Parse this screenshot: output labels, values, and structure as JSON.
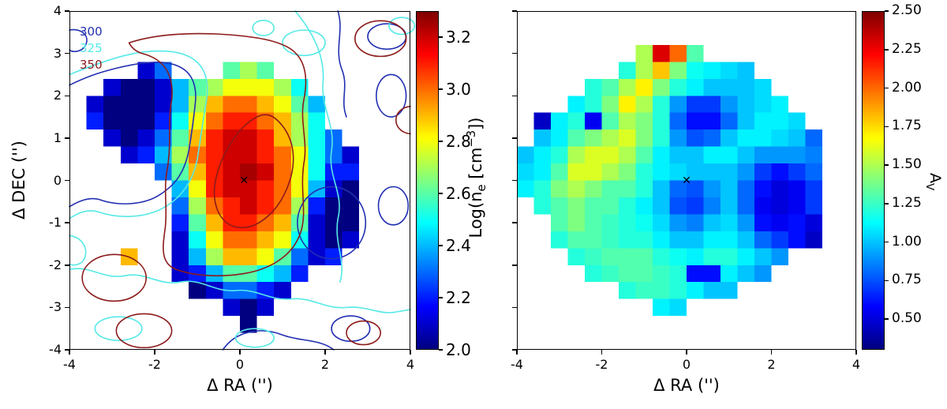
{
  "left_panel": {
    "xlabel": "Δ RA ('')",
    "ylabel": "Δ DEC ('')",
    "x_tick_labels": [
      "-4",
      "-2",
      "0",
      "2",
      "4"
    ],
    "y_tick_labels": [
      "4",
      "3",
      "2",
      "1",
      "0",
      "-1",
      "-2",
      "-3",
      "-4"
    ],
    "legend": [
      {
        "label": "300",
        "color": "#2230b2"
      },
      {
        "label": "325",
        "color": "#55e9e7"
      },
      {
        "label": "350",
        "color": "#8c1a1a"
      }
    ],
    "marker_symbol": "✕",
    "colorbar": {
      "label_prefix": "Log(n",
      "label_sub": "e",
      "label_mid": " [cm",
      "label_sup": "−3",
      "label_suffix": "])",
      "tick_labels": [
        "3.2",
        "3.0",
        "2.8",
        "2.6",
        "2.4",
        "2.2",
        "2.0"
      ]
    }
  },
  "right_panel": {
    "xlabel": "Δ RA ('')",
    "x_tick_labels": [
      "-4",
      "-2",
      "0",
      "2",
      "4"
    ],
    "marker_symbol": "✕",
    "colorbar": {
      "label_text": "A",
      "label_sub": "V",
      "tick_labels": [
        "2.50",
        "2.25",
        "2.00",
        "1.75",
        "1.50",
        "1.25",
        "1.00",
        "0.75",
        "0.50"
      ]
    }
  },
  "chart_data": [
    {
      "type": "heatmap",
      "xlabel": "Δ RA ('')",
      "ylabel": "Δ DEC ('')",
      "x_range": [
        -4,
        4
      ],
      "y_range": [
        -4,
        4
      ],
      "x_ticks": [
        -4,
        -2,
        0,
        2,
        4
      ],
      "y_ticks": [
        4,
        3,
        2,
        1,
        0,
        -1,
        -2,
        -3,
        -4
      ],
      "colormap": "jet",
      "vmin": 2.0,
      "vmax": 3.3,
      "colorbar_label": "Log(ne [cm−3])",
      "colorbar_ticks": [
        2.0,
        2.2,
        2.4,
        2.6,
        2.8,
        3.0,
        3.2
      ],
      "contour_levels": [
        "300",
        "325",
        "350"
      ],
      "marker_xy": [
        0.1,
        0
      ],
      "cell_size_arcsec": 0.4,
      "grid_rows": "top DEC=+4 to bottom DEC=-4, columns RA=-4 to +4",
      "grid": [
        [
          null,
          null,
          null,
          null,
          null,
          null,
          null,
          null,
          null,
          null,
          null,
          null,
          null,
          null,
          null,
          null,
          null,
          null,
          null,
          null
        ],
        [
          null,
          null,
          null,
          null,
          null,
          null,
          null,
          null,
          null,
          null,
          null,
          null,
          null,
          null,
          null,
          null,
          null,
          null,
          null,
          null
        ],
        [
          null,
          null,
          null,
          null,
          null,
          null,
          null,
          null,
          null,
          null,
          null,
          null,
          null,
          null,
          null,
          null,
          null,
          null,
          null,
          null
        ],
        [
          null,
          null,
          null,
          null,
          2.1,
          2.3,
          null,
          null,
          null,
          2.6,
          2.7,
          2.6,
          null,
          null,
          null,
          null,
          null,
          null,
          null,
          null
        ],
        [
          null,
          null,
          2.1,
          2.0,
          2.0,
          2.1,
          2.4,
          2.6,
          2.7,
          2.8,
          2.8,
          2.8,
          2.7,
          2.5,
          null,
          null,
          null,
          null,
          null,
          null
        ],
        [
          null,
          2.1,
          2.0,
          2.0,
          2.0,
          2.1,
          2.4,
          2.7,
          2.9,
          3.0,
          3.0,
          2.9,
          2.8,
          2.6,
          2.4,
          null,
          null,
          null,
          null,
          null
        ],
        [
          null,
          2.2,
          2.0,
          2.0,
          2.0,
          2.2,
          2.5,
          2.8,
          3.0,
          3.1,
          3.1,
          3.0,
          2.9,
          2.7,
          2.5,
          null,
          null,
          null,
          null,
          null
        ],
        [
          null,
          null,
          2.1,
          2.0,
          2.1,
          2.3,
          2.6,
          2.9,
          3.1,
          3.2,
          3.2,
          3.1,
          2.9,
          2.7,
          2.5,
          2.3,
          null,
          null,
          null,
          null
        ],
        [
          null,
          null,
          null,
          2.1,
          2.2,
          2.4,
          2.7,
          3.0,
          3.1,
          3.2,
          3.2,
          3.1,
          3.0,
          2.8,
          2.5,
          2.3,
          2.1,
          null,
          null,
          null
        ],
        [
          null,
          null,
          null,
          null,
          null,
          2.3,
          2.6,
          2.9,
          3.1,
          3.2,
          3.25,
          3.2,
          3.0,
          2.8,
          2.5,
          2.2,
          2.2,
          null,
          null,
          null
        ],
        [
          null,
          null,
          null,
          null,
          null,
          null,
          2.4,
          2.8,
          3.1,
          3.2,
          3.2,
          3.1,
          3.0,
          2.8,
          2.4,
          2.1,
          2.0,
          null,
          null,
          null
        ],
        [
          null,
          null,
          null,
          null,
          null,
          null,
          2.3,
          2.7,
          3.0,
          3.1,
          3.2,
          3.1,
          3.0,
          2.7,
          2.2,
          2.0,
          2.0,
          null,
          null,
          null
        ],
        [
          null,
          null,
          null,
          null,
          null,
          null,
          2.2,
          2.6,
          2.9,
          3.1,
          3.1,
          3.0,
          2.9,
          2.6,
          2.1,
          2.0,
          2.0,
          null,
          null,
          null
        ],
        [
          null,
          null,
          null,
          null,
          null,
          null,
          2.1,
          2.5,
          2.8,
          3.0,
          3.0,
          2.9,
          2.8,
          2.5,
          2.1,
          2.0,
          2.1,
          null,
          null,
          null
        ],
        [
          null,
          null,
          null,
          2.9,
          null,
          null,
          2.1,
          2.4,
          2.7,
          2.9,
          2.9,
          2.8,
          2.6,
          2.3,
          2.1,
          2.2,
          null,
          null,
          null,
          null
        ],
        [
          null,
          null,
          null,
          null,
          null,
          null,
          2.1,
          2.2,
          2.4,
          2.6,
          2.6,
          2.5,
          2.4,
          2.2,
          null,
          null,
          null,
          null,
          null,
          null
        ],
        [
          null,
          null,
          null,
          null,
          null,
          null,
          null,
          2.0,
          2.1,
          2.3,
          2.3,
          2.2,
          2.1,
          null,
          null,
          null,
          null,
          null,
          null,
          null
        ],
        [
          null,
          null,
          null,
          null,
          null,
          null,
          null,
          null,
          null,
          2.1,
          2.0,
          2.1,
          null,
          null,
          null,
          null,
          null,
          null,
          null,
          null
        ],
        [
          null,
          null,
          null,
          null,
          null,
          null,
          null,
          null,
          null,
          null,
          2.0,
          null,
          null,
          null,
          null,
          null,
          null,
          null,
          null,
          null
        ],
        [
          null,
          null,
          null,
          null,
          null,
          null,
          null,
          null,
          null,
          null,
          null,
          null,
          null,
          null,
          null,
          null,
          null,
          null,
          null,
          null
        ]
      ]
    },
    {
      "type": "heatmap",
      "xlabel": "Δ RA ('')",
      "x_range": [
        -4,
        4
      ],
      "y_range": [
        -4,
        4
      ],
      "x_ticks": [
        -4,
        -2,
        0,
        2,
        4
      ],
      "colormap": "jet",
      "vmin": 0.3,
      "vmax": 2.5,
      "colorbar_label": "A_V",
      "colorbar_ticks": [
        0.5,
        0.75,
        1.0,
        1.25,
        1.5,
        1.75,
        2.0,
        2.25,
        2.5
      ],
      "marker_xy": [
        0,
        0
      ],
      "cell_size_arcsec": 0.4,
      "grid_rows": "top DEC=+4 to bottom DEC=-4, columns RA=-4 to +4",
      "grid": [
        [
          null,
          null,
          null,
          null,
          null,
          null,
          null,
          null,
          null,
          null,
          null,
          null,
          null,
          null,
          null,
          null,
          null,
          null,
          null,
          null
        ],
        [
          null,
          null,
          null,
          null,
          null,
          null,
          null,
          null,
          null,
          null,
          null,
          null,
          null,
          null,
          null,
          null,
          null,
          null,
          null,
          null
        ],
        [
          null,
          null,
          null,
          null,
          null,
          null,
          null,
          1.5,
          2.3,
          2.0,
          1.3,
          null,
          null,
          null,
          null,
          null,
          null,
          null,
          null,
          null
        ],
        [
          null,
          null,
          null,
          null,
          null,
          null,
          1.2,
          1.5,
          1.8,
          1.4,
          1.15,
          1.1,
          1.05,
          1.0,
          null,
          null,
          null,
          null,
          null,
          null
        ],
        [
          null,
          null,
          null,
          null,
          1.2,
          1.3,
          1.5,
          1.7,
          1.4,
          1.2,
          1.1,
          1.0,
          1.0,
          1.0,
          1.05,
          null,
          null,
          null,
          null,
          null
        ],
        [
          null,
          null,
          null,
          1.1,
          1.2,
          1.4,
          1.7,
          1.5,
          1.2,
          0.9,
          0.7,
          0.7,
          0.9,
          1.0,
          1.05,
          1.1,
          null,
          null,
          null,
          null
        ],
        [
          null,
          0.45,
          1.1,
          1.2,
          0.55,
          1.3,
          1.5,
          1.4,
          1.2,
          0.8,
          0.6,
          0.6,
          0.8,
          1.0,
          1.1,
          1.1,
          1.05,
          null,
          null,
          null
        ],
        [
          null,
          1.0,
          1.1,
          1.3,
          1.4,
          1.5,
          1.6,
          1.4,
          1.2,
          0.9,
          0.75,
          0.8,
          1.0,
          1.1,
          1.1,
          1.05,
          1.0,
          0.8,
          null,
          null
        ],
        [
          1.0,
          1.1,
          1.2,
          1.5,
          1.6,
          1.6,
          1.5,
          1.3,
          1.1,
          1.0,
          1.0,
          1.1,
          1.1,
          1.0,
          0.9,
          0.9,
          0.9,
          0.85,
          null,
          null
        ],
        [
          1.05,
          1.1,
          1.3,
          1.6,
          1.6,
          1.5,
          1.4,
          1.2,
          1.1,
          1.05,
          1.0,
          1.0,
          1.0,
          0.9,
          0.7,
          0.6,
          0.7,
          0.8,
          null,
          null
        ],
        [
          1.1,
          1.2,
          1.4,
          1.5,
          1.4,
          1.3,
          1.3,
          1.2,
          1.0,
          0.8,
          0.75,
          0.9,
          1.0,
          0.8,
          0.6,
          0.5,
          0.55,
          0.7,
          null,
          null
        ],
        [
          null,
          1.2,
          1.3,
          1.4,
          1.3,
          1.3,
          1.2,
          1.1,
          1.0,
          0.75,
          0.7,
          0.85,
          1.0,
          0.8,
          0.55,
          0.5,
          0.55,
          0.7,
          null,
          null
        ],
        [
          null,
          null,
          1.3,
          1.4,
          1.3,
          1.25,
          1.2,
          1.15,
          1.05,
          0.9,
          0.85,
          1.0,
          1.05,
          0.9,
          0.6,
          0.55,
          0.6,
          0.5,
          null,
          null
        ],
        [
          null,
          null,
          1.2,
          1.3,
          1.3,
          1.25,
          1.2,
          1.2,
          1.1,
          1.0,
          1.0,
          1.1,
          1.1,
          1.0,
          0.8,
          0.7,
          0.6,
          0.45,
          null,
          null
        ],
        [
          null,
          null,
          null,
          1.2,
          1.25,
          1.3,
          1.3,
          1.3,
          1.2,
          1.15,
          1.1,
          1.2,
          1.2,
          1.1,
          1.0,
          0.9,
          null,
          null,
          null,
          null
        ],
        [
          null,
          null,
          null,
          null,
          1.2,
          1.25,
          1.3,
          1.3,
          1.25,
          1.2,
          0.6,
          0.6,
          1.1,
          1.0,
          0.9,
          null,
          null,
          null,
          null,
          null
        ],
        [
          null,
          null,
          null,
          null,
          null,
          null,
          1.2,
          1.25,
          1.25,
          1.2,
          1.1,
          1.0,
          1.0,
          null,
          null,
          null,
          null,
          null,
          null,
          null
        ],
        [
          null,
          null,
          null,
          null,
          null,
          null,
          null,
          null,
          1.1,
          1.05,
          null,
          null,
          null,
          null,
          null,
          null,
          null,
          null,
          null,
          null
        ],
        [
          null,
          null,
          null,
          null,
          null,
          null,
          null,
          null,
          null,
          null,
          null,
          null,
          null,
          null,
          null,
          null,
          null,
          null,
          null,
          null
        ],
        [
          null,
          null,
          null,
          null,
          null,
          null,
          null,
          null,
          null,
          null,
          null,
          null,
          null,
          null,
          null,
          null,
          null,
          null,
          null,
          null
        ]
      ]
    }
  ]
}
